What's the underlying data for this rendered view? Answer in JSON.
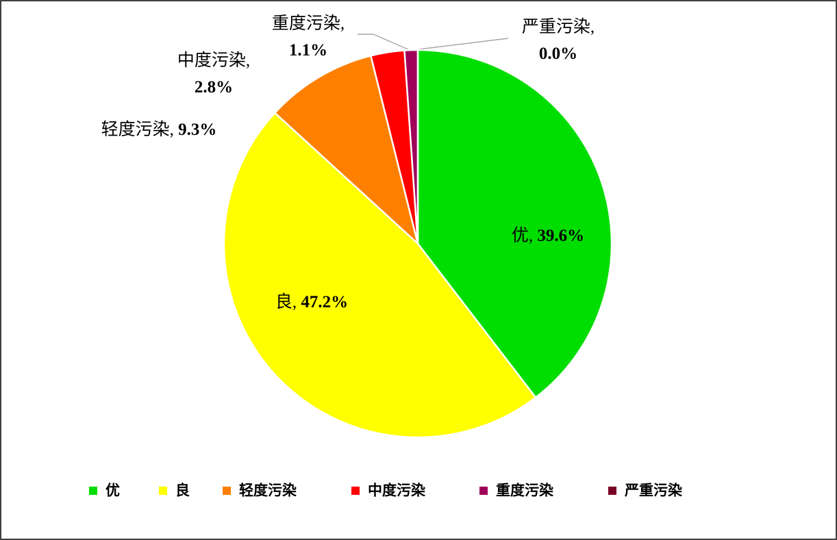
{
  "chart_data": {
    "type": "pie",
    "categories": [
      "优",
      "良",
      "轻度污染",
      "中度污染",
      "重度污染",
      "严重污染"
    ],
    "values": [
      39.6,
      47.2,
      9.3,
      2.8,
      1.1,
      0.0
    ],
    "value_labels": [
      "优, 39.6%",
      "良, 47.2%",
      "轻度污染, 9.3%",
      "中度污染, 2.8%",
      "重度污染, 1.1%",
      "严重污染, 0.0%"
    ],
    "colors": [
      "#00dd00",
      "#ffff00",
      "#ff8000",
      "#ff0000",
      "#a0005a",
      "#7a0026"
    ],
    "legend": "bottom"
  }
}
